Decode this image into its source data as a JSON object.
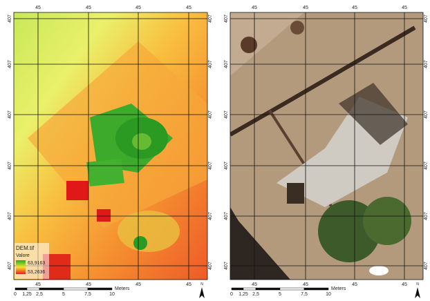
{
  "panels": [
    {
      "x_labels": [
        "45",
        "45",
        "45",
        "45"
      ],
      "y_labels": [
        "407",
        "407",
        "407",
        "407",
        "407",
        "407"
      ],
      "legend": {
        "title": "DEM.tif",
        "subtitle": "Valore",
        "max": "63,9163",
        "min": "53,2636"
      },
      "scale": {
        "ticks": [
          "0",
          "1,25",
          "2,5",
          "5",
          "7,5",
          "10"
        ],
        "unit": "Meters"
      },
      "north": "N"
    },
    {
      "x_labels": [
        "45",
        "45",
        "45",
        "45"
      ],
      "y_labels": [
        "407",
        "407",
        "407",
        "407",
        "407",
        "407"
      ],
      "scale": {
        "ticks": [
          "0",
          "1,25",
          "2,5",
          "5",
          "7,5",
          "10"
        ],
        "unit": "Meters"
      },
      "north": "N"
    }
  ]
}
